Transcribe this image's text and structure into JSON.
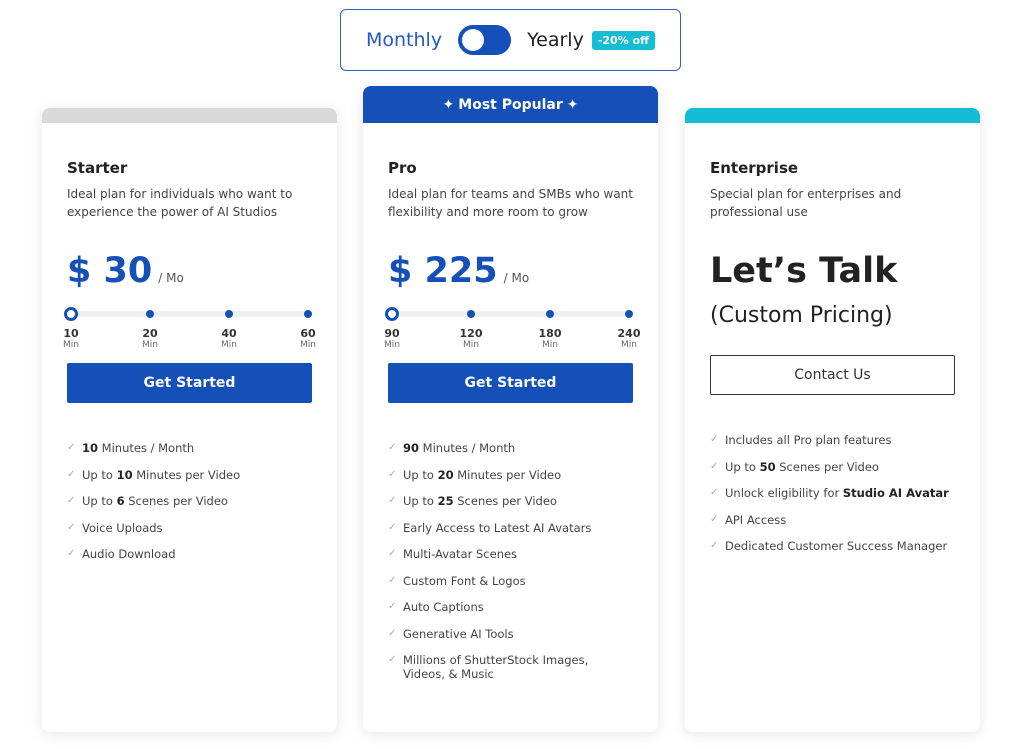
{
  "billing_toggle": {
    "monthly_label": "Monthly",
    "yearly_label": "Yearly",
    "discount_badge": "-20% off",
    "selected": "Monthly"
  },
  "colors": {
    "primary": "#1450b8",
    "accent": "#14bcd4",
    "starter_strip": "#d9d9d9"
  },
  "plans": [
    {
      "name": "Starter",
      "description": "Ideal plan for individuals who want to experience the power of AI Studios",
      "price": "$ 30",
      "period": "/ Mo",
      "slider": {
        "unit": "Min",
        "options": [
          "10",
          "20",
          "40",
          "60"
        ],
        "selected_index": 0
      },
      "button": "Get Started",
      "features": [
        [
          {
            "b": "10"
          },
          {
            "t": " Minutes / Month"
          }
        ],
        [
          {
            "t": "Up to "
          },
          {
            "b": "10"
          },
          {
            "t": " Minutes per Video"
          }
        ],
        [
          {
            "t": "Up to "
          },
          {
            "b": "6"
          },
          {
            "t": " Scenes per Video"
          }
        ],
        [
          {
            "t": "Voice Uploads"
          }
        ],
        [
          {
            "t": "Audio Download"
          }
        ]
      ]
    },
    {
      "name": "Pro",
      "badge": "Most Popular",
      "description": "Ideal plan for teams and SMBs who want flexibility and more room to grow",
      "price": "$ 225",
      "period": "/ Mo",
      "slider": {
        "unit": "Min",
        "options": [
          "90",
          "120",
          "180",
          "240"
        ],
        "selected_index": 0
      },
      "button": "Get Started",
      "features": [
        [
          {
            "b": "90"
          },
          {
            "t": " Minutes / Month"
          }
        ],
        [
          {
            "t": "Up to "
          },
          {
            "b": "20"
          },
          {
            "t": " Minutes per Video"
          }
        ],
        [
          {
            "t": "Up to "
          },
          {
            "b": "25"
          },
          {
            "t": " Scenes per Video"
          }
        ],
        [
          {
            "t": "Early Access to Latest AI Avatars"
          }
        ],
        [
          {
            "t": "Multi-Avatar Scenes"
          }
        ],
        [
          {
            "t": "Custom Font & Logos"
          }
        ],
        [
          {
            "t": "Auto Captions"
          }
        ],
        [
          {
            "t": "Generative AI Tools"
          }
        ],
        [
          {
            "t": "Millions of ShutterStock Images, Videos, & Music"
          }
        ]
      ]
    },
    {
      "name": "Enterprise",
      "description": "Special plan for enterprises and professional use",
      "headline": "Let’s Talk",
      "subheadline": "(Custom Pricing)",
      "button": "Contact Us",
      "features": [
        [
          {
            "t": "Includes all Pro plan features"
          }
        ],
        [
          {
            "t": "Up to "
          },
          {
            "b": "50"
          },
          {
            "t": " Scenes per Video"
          }
        ],
        [
          {
            "t": "Unlock eligibility for "
          },
          {
            "b": "Studio AI Avatar"
          }
        ],
        [
          {
            "t": "API Access"
          }
        ],
        [
          {
            "t": "Dedicated Customer Success Manager"
          }
        ]
      ]
    }
  ]
}
